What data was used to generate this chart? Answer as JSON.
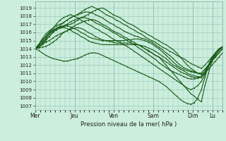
{
  "xlabel": "Pression niveau de la mer( hPa )",
  "ylim": [
    1006.5,
    1019.8
  ],
  "yticks": [
    1007,
    1008,
    1009,
    1010,
    1011,
    1012,
    1013,
    1014,
    1015,
    1016,
    1017,
    1018,
    1019
  ],
  "xtick_labels": [
    "Mer",
    "Jeu",
    "Ven",
    "Sam",
    "Dim",
    "Lu"
  ],
  "xtick_positions": [
    0,
    48,
    96,
    144,
    192,
    216
  ],
  "xlim": [
    0,
    228
  ],
  "bg_color": "#cceedd",
  "grid_color": "#99ccbb",
  "line_color": "#1a5c1a",
  "line_width": 0.8,
  "marker_size": 2,
  "series": [
    [
      1014.0,
      1014.1,
      1014.2,
      1014.3,
      1014.5,
      1014.8,
      1015.1,
      1015.5,
      1016.0,
      1016.2,
      1016.5,
      1016.8,
      1017.0,
      1017.2,
      1017.4,
      1017.5,
      1017.6,
      1017.5,
      1017.3,
      1017.0,
      1016.8,
      1016.5,
      1016.2,
      1016.0,
      1015.8,
      1015.5,
      1015.3,
      1015.0,
      1014.8,
      1014.5,
      1014.3,
      1014.0,
      1013.8,
      1013.5,
      1013.2,
      1013.0,
      1012.5,
      1012.0,
      1011.5,
      1011.0,
      1010.5,
      1010.0,
      1009.5,
      1009.0,
      1008.5,
      1008.2,
      1007.8,
      1007.5,
      1009.5,
      1011.0,
      1012.5,
      1013.5,
      1014.0,
      1014.2
    ],
    [
      1014.0,
      1014.2,
      1014.5,
      1015.0,
      1015.5,
      1016.0,
      1016.3,
      1016.5,
      1016.6,
      1016.5,
      1016.3,
      1016.0,
      1015.8,
      1015.5,
      1015.3,
      1015.0,
      1014.8,
      1014.7,
      1014.6,
      1014.5,
      1014.5,
      1014.5,
      1014.5,
      1014.5,
      1014.5,
      1014.5,
      1014.5,
      1014.5,
      1014.5,
      1014.5,
      1014.4,
      1014.3,
      1014.1,
      1013.9,
      1013.7,
      1013.4,
      1013.1,
      1012.8,
      1012.4,
      1012.0,
      1011.8,
      1011.5,
      1011.3,
      1011.0,
      1010.8,
      1010.7,
      1010.6,
      1010.5,
      1011.0,
      1011.5,
      1012.0,
      1012.5,
      1013.0,
      1013.5
    ],
    [
      1014.0,
      1014.3,
      1014.7,
      1015.2,
      1015.8,
      1016.2,
      1016.5,
      1016.6,
      1016.7,
      1016.8,
      1016.7,
      1016.5,
      1016.3,
      1016.0,
      1015.8,
      1015.5,
      1015.3,
      1015.2,
      1015.1,
      1015.0,
      1015.0,
      1015.0,
      1015.0,
      1015.0,
      1015.0,
      1015.0,
      1015.1,
      1015.1,
      1015.2,
      1015.2,
      1015.1,
      1015.0,
      1014.8,
      1014.6,
      1014.3,
      1014.0,
      1013.6,
      1013.2,
      1012.8,
      1012.4,
      1012.0,
      1011.7,
      1011.5,
      1011.3,
      1011.2,
      1011.1,
      1011.0,
      1011.0,
      1011.5,
      1012.0,
      1012.5,
      1013.0,
      1013.5,
      1014.0
    ],
    [
      1014.0,
      1014.5,
      1015.2,
      1015.8,
      1016.2,
      1016.5,
      1016.8,
      1017.0,
      1017.2,
      1017.5,
      1017.8,
      1018.0,
      1018.2,
      1018.5,
      1018.8,
      1019.0,
      1019.2,
      1019.0,
      1018.8,
      1018.5,
      1018.2,
      1018.0,
      1017.8,
      1017.5,
      1017.3,
      1017.0,
      1016.8,
      1016.5,
      1016.3,
      1016.0,
      1015.8,
      1015.5,
      1015.2,
      1015.0,
      1014.8,
      1014.5,
      1014.2,
      1014.0,
      1013.7,
      1013.5,
      1013.2,
      1013.0,
      1012.8,
      1012.5,
      1012.2,
      1012.0,
      1011.8,
      1011.6,
      1012.0,
      1012.5,
      1013.0,
      1013.5,
      1014.0,
      1014.3
    ],
    [
      1014.0,
      1014.3,
      1014.8,
      1015.3,
      1015.8,
      1016.2,
      1016.5,
      1016.7,
      1016.8,
      1016.9,
      1017.0,
      1017.2,
      1017.5,
      1017.8,
      1018.0,
      1018.2,
      1018.5,
      1018.7,
      1018.9,
      1019.0,
      1018.8,
      1018.5,
      1018.2,
      1018.0,
      1017.8,
      1017.5,
      1017.2,
      1017.0,
      1016.8,
      1016.5,
      1016.2,
      1016.0,
      1015.7,
      1015.5,
      1015.2,
      1015.0,
      1014.7,
      1014.5,
      1014.2,
      1013.9,
      1013.5,
      1013.0,
      1012.5,
      1012.0,
      1011.6,
      1011.3,
      1011.0,
      1010.8,
      1011.2,
      1011.8,
      1012.5,
      1013.2,
      1013.8,
      1014.2
    ],
    [
      1014.0,
      1014.2,
      1014.5,
      1015.0,
      1015.5,
      1016.0,
      1016.4,
      1016.8,
      1017.2,
      1017.5,
      1017.8,
      1018.0,
      1018.2,
      1018.3,
      1018.5,
      1018.5,
      1018.4,
      1018.2,
      1018.0,
      1017.8,
      1017.5,
      1017.2,
      1017.0,
      1016.7,
      1016.5,
      1016.2,
      1016.0,
      1015.8,
      1015.6,
      1015.5,
      1015.3,
      1015.2,
      1015.0,
      1014.8,
      1014.5,
      1014.2,
      1013.9,
      1013.5,
      1013.2,
      1012.8,
      1012.4,
      1012.0,
      1011.7,
      1011.5,
      1011.3,
      1011.2,
      1011.0,
      1011.0,
      1011.5,
      1012.0,
      1012.5,
      1013.0,
      1013.5,
      1014.0
    ],
    [
      1014.0,
      1014.2,
      1014.5,
      1014.8,
      1015.0,
      1015.3,
      1015.6,
      1015.8,
      1016.0,
      1016.2,
      1016.4,
      1016.5,
      1016.6,
      1016.5,
      1016.3,
      1016.0,
      1015.8,
      1015.5,
      1015.3,
      1015.1,
      1015.0,
      1014.9,
      1014.8,
      1014.7,
      1014.7,
      1014.7,
      1014.7,
      1014.7,
      1014.6,
      1014.5,
      1014.3,
      1014.0,
      1013.7,
      1013.5,
      1013.2,
      1013.0,
      1012.7,
      1012.4,
      1012.1,
      1011.8,
      1011.5,
      1011.2,
      1011.0,
      1010.8,
      1010.6,
      1010.5,
      1010.5,
      1010.6,
      1011.2,
      1012.0,
      1012.8,
      1013.5,
      1014.0,
      1014.2
    ],
    [
      1014.0,
      1013.8,
      1013.5,
      1013.2,
      1013.0,
      1012.8,
      1012.7,
      1012.6,
      1012.5,
      1012.5,
      1012.6,
      1012.7,
      1012.8,
      1013.0,
      1013.2,
      1013.4,
      1013.5,
      1013.5,
      1013.4,
      1013.2,
      1013.0,
      1012.8,
      1012.6,
      1012.4,
      1012.2,
      1012.0,
      1011.8,
      1011.6,
      1011.4,
      1011.2,
      1011.0,
      1010.8,
      1010.6,
      1010.4,
      1010.2,
      1010.0,
      1009.7,
      1009.4,
      1009.0,
      1008.6,
      1008.2,
      1007.8,
      1007.5,
      1007.3,
      1007.2,
      1007.4,
      1008.0,
      1009.0,
      1010.5,
      1012.0,
      1013.0,
      1013.5,
      1014.0,
      1014.2
    ],
    [
      1014.0,
      1014.5,
      1015.0,
      1015.5,
      1016.0,
      1016.3,
      1016.5,
      1016.6,
      1016.8,
      1017.0,
      1017.3,
      1017.5,
      1017.7,
      1017.8,
      1017.8,
      1017.7,
      1017.5,
      1017.2,
      1017.0,
      1016.8,
      1016.5,
      1016.3,
      1016.0,
      1015.8,
      1015.5,
      1015.3,
      1015.0,
      1014.8,
      1014.5,
      1014.2,
      1013.9,
      1013.6,
      1013.3,
      1013.0,
      1012.7,
      1012.3,
      1012.0,
      1011.7,
      1011.4,
      1011.2,
      1011.0,
      1010.8,
      1010.6,
      1010.4,
      1010.3,
      1010.3,
      1010.4,
      1010.5,
      1011.0,
      1011.8,
      1012.5,
      1013.2,
      1013.8,
      1014.2
    ],
    [
      1014.0,
      1014.5,
      1015.0,
      1015.5,
      1016.0,
      1016.5,
      1017.0,
      1017.5,
      1017.8,
      1018.0,
      1018.2,
      1018.0,
      1017.8,
      1017.5,
      1017.3,
      1017.0,
      1016.8,
      1016.5,
      1016.3,
      1016.0,
      1015.8,
      1015.5,
      1015.2,
      1015.0,
      1014.8,
      1014.5,
      1014.3,
      1014.0,
      1013.7,
      1013.4,
      1013.1,
      1012.8,
      1012.5,
      1012.2,
      1011.9,
      1011.6,
      1011.3,
      1011.0,
      1010.7,
      1010.4,
      1010.1,
      1009.8,
      1009.5,
      1009.2,
      1009.0,
      1009.2,
      1009.5,
      1010.0,
      1010.8,
      1011.8,
      1012.8,
      1013.5,
      1014.0,
      1014.2
    ]
  ]
}
